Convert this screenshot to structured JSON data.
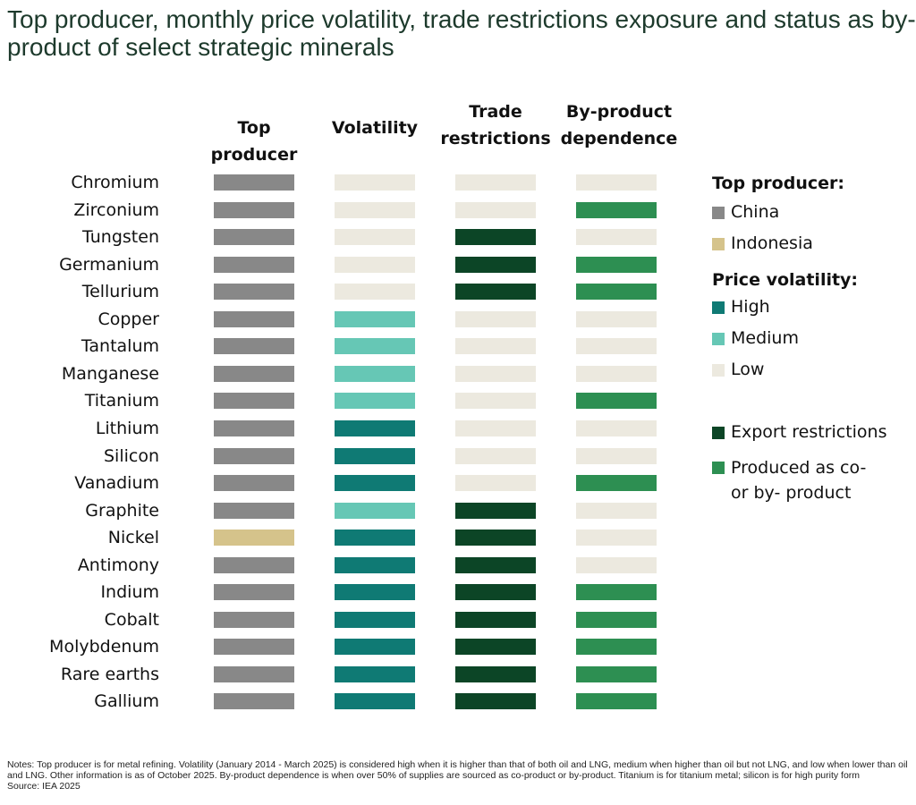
{
  "title": "Top producer, monthly price volatility, trade restrictions exposure and status as by-product of select strategic minerals",
  "colors": {
    "China": "#888888",
    "Indonesia": "#d5c38b",
    "High": "#0f7a74",
    "Medium": "#66c7b5",
    "Low": "#ece9df",
    "Export": "#0c4526",
    "Byproduct": "#2d8f52",
    "None": "#ece9df"
  },
  "chart_data": {
    "type": "table",
    "columns": [
      "Top producer",
      "Volatility",
      "Trade restrictions",
      "By-product dependence"
    ],
    "rows": [
      {
        "mineral": "Chromium",
        "producer": "China",
        "volatility": "Low",
        "trade": "None",
        "byproduct": "No"
      },
      {
        "mineral": "Zirconium",
        "producer": "China",
        "volatility": "Low",
        "trade": "None",
        "byproduct": "Yes"
      },
      {
        "mineral": "Tungsten",
        "producer": "China",
        "volatility": "Low",
        "trade": "Export restrictions",
        "byproduct": "No"
      },
      {
        "mineral": "Germanium",
        "producer": "China",
        "volatility": "Low",
        "trade": "Export restrictions",
        "byproduct": "Yes"
      },
      {
        "mineral": "Tellurium",
        "producer": "China",
        "volatility": "Low",
        "trade": "Export restrictions",
        "byproduct": "Yes"
      },
      {
        "mineral": "Copper",
        "producer": "China",
        "volatility": "Medium",
        "trade": "None",
        "byproduct": "No"
      },
      {
        "mineral": "Tantalum",
        "producer": "China",
        "volatility": "Medium",
        "trade": "None",
        "byproduct": "No"
      },
      {
        "mineral": "Manganese",
        "producer": "China",
        "volatility": "Medium",
        "trade": "None",
        "byproduct": "No"
      },
      {
        "mineral": "Titanium",
        "producer": "China",
        "volatility": "Medium",
        "trade": "None",
        "byproduct": "Yes"
      },
      {
        "mineral": "Lithium",
        "producer": "China",
        "volatility": "High",
        "trade": "None",
        "byproduct": "No"
      },
      {
        "mineral": "Silicon",
        "producer": "China",
        "volatility": "High",
        "trade": "None",
        "byproduct": "No"
      },
      {
        "mineral": "Vanadium",
        "producer": "China",
        "volatility": "High",
        "trade": "None",
        "byproduct": "Yes"
      },
      {
        "mineral": "Graphite",
        "producer": "China",
        "volatility": "Medium",
        "trade": "Export restrictions",
        "byproduct": "No"
      },
      {
        "mineral": "Nickel",
        "producer": "Indonesia",
        "volatility": "High",
        "trade": "Export restrictions",
        "byproduct": "No"
      },
      {
        "mineral": "Antimony",
        "producer": "China",
        "volatility": "High",
        "trade": "Export restrictions",
        "byproduct": "No"
      },
      {
        "mineral": "Indium",
        "producer": "China",
        "volatility": "High",
        "trade": "Export restrictions",
        "byproduct": "Yes"
      },
      {
        "mineral": "Cobalt",
        "producer": "China",
        "volatility": "High",
        "trade": "Export restrictions",
        "byproduct": "Yes"
      },
      {
        "mineral": "Molybdenum",
        "producer": "China",
        "volatility": "High",
        "trade": "Export restrictions",
        "byproduct": "Yes"
      },
      {
        "mineral": "Rare earths",
        "producer": "China",
        "volatility": "High",
        "trade": "Export restrictions",
        "byproduct": "Yes"
      },
      {
        "mineral": "Gallium",
        "producer": "China",
        "volatility": "High",
        "trade": "Export restrictions",
        "byproduct": "Yes"
      }
    ]
  },
  "headers": {
    "producer": [
      "Top",
      "producer"
    ],
    "volatility": [
      "Volatility"
    ],
    "trade": [
      "Trade",
      "restrictions"
    ],
    "byproduct": [
      "By-product",
      "dependence"
    ]
  },
  "legend": {
    "producer_title": "Top producer:",
    "china": "China",
    "indonesia": "Indonesia",
    "volatility_title": "Price volatility:",
    "high": "High",
    "medium": "Medium",
    "low": "Low",
    "export": "Export restrictions",
    "byproduct_1": "Produced as co-",
    "byproduct_2": "or by- product"
  },
  "notes": "Notes: Top producer is for metal refining. Volatility (January 2014 - March 2025) is considered high when it is higher than that of both oil and LNG, medium when higher than oil but not LNG, and low when lower than oil and LNG. Other information is as of October 2025. By-product dependence is when over 50% of supplies are sourced as co-product or by-product. Titanium is for titanium metal; silicon is for high purity form",
  "source": "Source: IEA 2025"
}
